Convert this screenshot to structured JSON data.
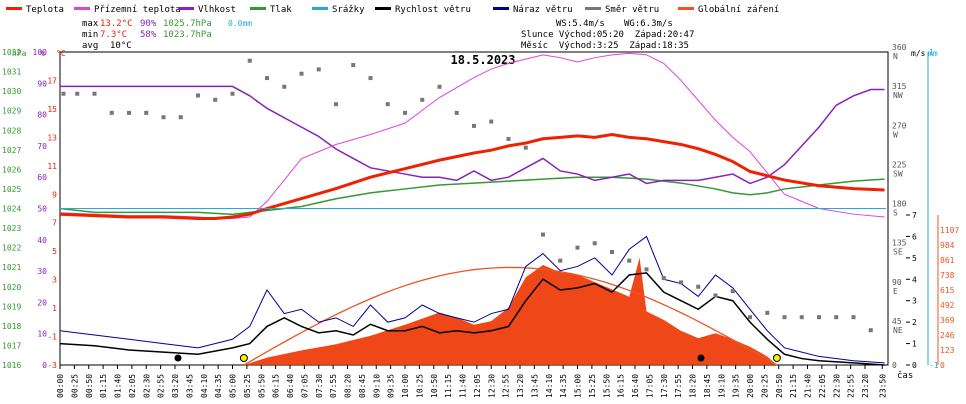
{
  "legend": [
    {
      "label": "Teplota",
      "color": "#ee2200"
    },
    {
      "label": "Přízemní teplota",
      "color": "#dd44dd"
    },
    {
      "label": "Vlhkost",
      "color": "#8822bb"
    },
    {
      "label": "Tlak",
      "color": "#339933"
    },
    {
      "label": "Srážky",
      "color": "#22aadd"
    },
    {
      "label": "Rychlost větru",
      "color": "#000000"
    },
    {
      "label": "Náraz větru",
      "color": "#000099"
    },
    {
      "label": "Směr větru",
      "color": "#777777"
    },
    {
      "label": "Globální záření",
      "color": "#ee5522"
    }
  ],
  "stats": {
    "max_label": "max",
    "max_temp": "13.2°C",
    "max_hum": "90%",
    "max_press": "1025.7hPa",
    "max_rain": "0.0mm",
    "min_label": "min",
    "min_temp": "7.3°C",
    "min_hum": "58%",
    "min_press": "1023.7hPa",
    "avg_label": "avg",
    "avg_temp": "10°C"
  },
  "info": {
    "ws": "WS:5.4m/s",
    "wg": "WG:6.3m/s",
    "sun": "Slunce Východ:05:20  Západ:20:47",
    "moon": "Měsíc  Východ:3:25  Západ:18:35"
  },
  "chart_data": {
    "type": "line",
    "title": "18.5.2023",
    "x_unit": "čas",
    "x_ticks": [
      "00:00",
      "00:25",
      "00:50",
      "01:15",
      "01:40",
      "02:05",
      "02:30",
      "02:55",
      "03:20",
      "03:45",
      "04:10",
      "04:35",
      "05:00",
      "05:25",
      "05:50",
      "06:15",
      "06:40",
      "07:05",
      "07:30",
      "07:55",
      "08:20",
      "08:45",
      "09:10",
      "09:35",
      "10:00",
      "10:25",
      "10:50",
      "11:15",
      "11:40",
      "12:05",
      "12:30",
      "12:55",
      "13:20",
      "13:45",
      "14:10",
      "14:35",
      "15:00",
      "15:25",
      "15:50",
      "16:15",
      "16:40",
      "17:05",
      "17:30",
      "17:55",
      "18:20",
      "18:45",
      "19:10",
      "19:35",
      "20:00",
      "20:25",
      "20:50",
      "21:15",
      "21:40",
      "22:05",
      "22:30",
      "22:55",
      "23:20",
      "23:50"
    ],
    "axes": {
      "pressure": {
        "unit": "hPa",
        "range": [
          1016,
          1032
        ],
        "ticks": [
          "1016",
          "1017",
          "1018",
          "1019",
          "1020",
          "1021",
          "1022",
          "1023",
          "1024",
          "1025",
          "1026",
          "1027",
          "1028",
          "1029",
          "1030",
          "1031",
          "1032"
        ]
      },
      "humidity": {
        "unit": "%",
        "range": [
          0,
          100
        ],
        "ticks": [
          "0",
          "10",
          "20",
          "30",
          "40",
          "50",
          "60",
          "70",
          "80",
          "90",
          "100"
        ]
      },
      "temperature": {
        "unit": "°C",
        "range": [
          -3,
          19
        ],
        "ticks": [
          "-3",
          "-1",
          "1",
          "3",
          "5",
          "7",
          "9",
          "11",
          "13",
          "15",
          "17"
        ]
      },
      "direction": {
        "unit": "°",
        "range": [
          0,
          360
        ],
        "ticks": [
          "0",
          "45 NE",
          "90 E",
          "135 SE",
          "180 S",
          "225 SW",
          "270 W",
          "315 NW",
          "360 N"
        ]
      },
      "wind": {
        "unit": "m/s",
        "range": [
          0,
          7
        ],
        "ticks": [
          "0",
          "1",
          "2",
          "3",
          "4",
          "5",
          "6",
          "7"
        ]
      },
      "rain": {
        "unit": "mm",
        "range": [
          -1,
          1
        ],
        "ticks": [
          "-1",
          "1"
        ]
      },
      "radiation": {
        "range": [
          0,
          1230
        ],
        "ticks": [
          "0",
          "123",
          "246",
          "369",
          "492",
          "615",
          "738",
          "861",
          "984",
          "1107"
        ]
      }
    },
    "series": [
      {
        "name": "Teplota",
        "axis": "temperature",
        "x": [
          0,
          1,
          2,
          3,
          4,
          4.5,
          5,
          5.5,
          6,
          7,
          8,
          9,
          10,
          11,
          12,
          12.5,
          13,
          13.5,
          14,
          14.5,
          15,
          15.5,
          16,
          16.5,
          17,
          17.5,
          18,
          18.5,
          19,
          19.5,
          20,
          21,
          22,
          23,
          23.9
        ],
        "values": [
          7.6,
          7.5,
          7.4,
          7.4,
          7.3,
          7.3,
          7.4,
          7.6,
          8.0,
          8.7,
          9.4,
          10.2,
          10.8,
          11.4,
          11.9,
          12.1,
          12.4,
          12.6,
          12.9,
          13.0,
          13.1,
          13.0,
          13.2,
          13.0,
          12.9,
          12.7,
          12.5,
          12.2,
          11.8,
          11.3,
          10.6,
          10.0,
          9.6,
          9.4,
          9.3
        ]
      },
      {
        "name": "Přízemní teplota",
        "axis": "temperature",
        "x": [
          0,
          1,
          2,
          3,
          4,
          4.5,
          5,
          5.5,
          6,
          7,
          8,
          9,
          10,
          11,
          11.5,
          12,
          12.5,
          13,
          13.5,
          14,
          14.5,
          15,
          15.5,
          16,
          16.5,
          17,
          17.5,
          18,
          18.5,
          19,
          19.5,
          20,
          21,
          22,
          23,
          23.9
        ],
        "values": [
          7.7,
          7.6,
          7.5,
          7.5,
          7.4,
          7.3,
          7.3,
          7.4,
          8.5,
          11.5,
          12.5,
          13.2,
          14.0,
          15.8,
          16.5,
          17.2,
          17.8,
          18.2,
          18.5,
          18.8,
          18.6,
          18.3,
          18.6,
          18.8,
          18.9,
          18.8,
          18.2,
          17.0,
          15.6,
          14.2,
          13.0,
          12.0,
          9.0,
          8.0,
          7.6,
          7.4
        ]
      },
      {
        "name": "Vlhkost",
        "axis": "humidity",
        "x": [
          0,
          1,
          2,
          3,
          4,
          4.5,
          5,
          5.5,
          6,
          6.5,
          7,
          7.5,
          8,
          8.5,
          9,
          9.5,
          10,
          10.5,
          11,
          11.5,
          12,
          12.5,
          13,
          13.5,
          14,
          14.5,
          15,
          15.5,
          16,
          16.5,
          17,
          17.5,
          18,
          18.5,
          19,
          19.5,
          20,
          20.5,
          21,
          21.5,
          22,
          22.5,
          23,
          23.5,
          23.9
        ],
        "values": [
          89,
          89,
          89,
          89,
          89,
          89,
          89,
          86,
          82,
          79,
          76,
          73,
          69,
          66,
          63,
          62,
          61,
          60,
          60,
          59,
          62,
          59,
          60,
          63,
          66,
          62,
          61,
          59,
          60,
          61,
          58,
          59,
          59,
          59,
          60,
          61,
          58,
          60,
          64,
          70,
          76,
          83,
          86,
          88,
          88
        ]
      },
      {
        "name": "Tlak",
        "axis": "pressure",
        "x": [
          0,
          1,
          2,
          3,
          4,
          5,
          5.5,
          6,
          7,
          8,
          9,
          10,
          11,
          12,
          13,
          14,
          15,
          16,
          17,
          18,
          19,
          19.5,
          20,
          20.5,
          21,
          22,
          23,
          23.9
        ],
        "values": [
          1024.0,
          1023.8,
          1023.8,
          1023.8,
          1023.8,
          1023.7,
          1023.8,
          1023.9,
          1024.1,
          1024.5,
          1024.8,
          1025.0,
          1025.2,
          1025.3,
          1025.4,
          1025.5,
          1025.6,
          1025.6,
          1025.5,
          1025.3,
          1025.0,
          1024.8,
          1024.7,
          1024.8,
          1025.0,
          1025.2,
          1025.4,
          1025.5
        ]
      },
      {
        "name": "Rychlost větru",
        "axis": "wind",
        "x": [
          0,
          1,
          2,
          3,
          4,
          5,
          5.5,
          6,
          6.5,
          7,
          7.5,
          8,
          8.5,
          9,
          9.5,
          10,
          10.5,
          11,
          11.5,
          12,
          12.5,
          13,
          13.5,
          14,
          14.5,
          15,
          15.5,
          16,
          16.5,
          17,
          17.5,
          18,
          18.5,
          19,
          19.5,
          20,
          20.5,
          21,
          21.5,
          22,
          23,
          23.9
        ],
        "values": [
          1.0,
          0.9,
          0.7,
          0.6,
          0.5,
          0.8,
          1.0,
          1.8,
          2.2,
          1.8,
          1.5,
          1.6,
          1.4,
          1.9,
          1.6,
          1.6,
          1.8,
          1.5,
          1.6,
          1.5,
          1.6,
          1.8,
          3.0,
          4.0,
          3.5,
          3.6,
          3.8,
          3.4,
          4.2,
          4.3,
          3.4,
          3.0,
          2.6,
          3.2,
          3.0,
          2.0,
          1.2,
          0.5,
          0.3,
          0.2,
          0.1,
          0.0
        ]
      },
      {
        "name": "Náraz větru",
        "axis": "wind",
        "x": [
          0,
          1,
          2,
          3,
          4,
          5,
          5.5,
          6,
          6.5,
          7,
          7.5,
          8,
          8.5,
          9,
          9.5,
          10,
          10.5,
          11,
          11.5,
          12,
          12.5,
          13,
          13.5,
          14,
          14.5,
          15,
          15.5,
          16,
          16.5,
          17,
          17.5,
          18,
          18.5,
          19,
          19.5,
          20,
          20.5,
          21,
          21.5,
          22,
          23,
          23.9
        ],
        "values": [
          1.6,
          1.4,
          1.2,
          1.0,
          0.8,
          1.2,
          1.8,
          3.5,
          2.4,
          2.6,
          2.0,
          2.2,
          1.8,
          2.8,
          2.0,
          2.2,
          2.8,
          2.4,
          2.2,
          2.0,
          2.4,
          2.6,
          4.6,
          5.2,
          4.4,
          4.6,
          5.0,
          4.2,
          5.4,
          6.0,
          4.0,
          3.8,
          3.2,
          4.2,
          3.6,
          2.6,
          1.6,
          0.8,
          0.6,
          0.4,
          0.2,
          0.1
        ]
      },
      {
        "name": "Směr větru",
        "axis": "direction",
        "x": [
          0.1,
          0.5,
          1,
          1.5,
          2,
          2.5,
          3,
          3.5,
          4,
          4.5,
          5,
          5.5,
          6,
          6.5,
          7,
          7.5,
          8,
          8.5,
          9,
          9.5,
          10,
          10.5,
          11,
          11.5,
          12,
          12.5,
          13,
          13.5,
          14,
          14.5,
          15,
          15.5,
          16,
          16.5,
          17,
          17.5,
          18,
          18.5,
          19,
          19.5,
          20,
          20.5,
          21,
          21.5,
          22,
          22.5,
          23,
          23.5
        ],
        "values": [
          312,
          312,
          312,
          290,
          290,
          290,
          285,
          285,
          310,
          305,
          312,
          350,
          330,
          320,
          335,
          340,
          300,
          345,
          330,
          300,
          290,
          305,
          320,
          290,
          275,
          280,
          260,
          250,
          150,
          120,
          135,
          140,
          130,
          120,
          110,
          100,
          95,
          90,
          80,
          85,
          55,
          60,
          55,
          55,
          55,
          55,
          55,
          40
        ]
      },
      {
        "name": "Globální záření",
        "axis": "radiation",
        "x": [
          5.33,
          6,
          7,
          8,
          9,
          10,
          11,
          11.5,
          12,
          12.5,
          13,
          13.5,
          14,
          14.5,
          15,
          15.5,
          16,
          16.5,
          16.8,
          17,
          17.5,
          18,
          18.5,
          19,
          19.5,
          20,
          20.5,
          20.78
        ],
        "values": [
          0,
          60,
          120,
          170,
          240,
          330,
          430,
          390,
          330,
          360,
          470,
          720,
          820,
          760,
          740,
          680,
          620,
          560,
          880,
          440,
          370,
          280,
          220,
          260,
          210,
          150,
          70,
          0
        ]
      },
      {
        "name": "Srážky",
        "axis": "rain",
        "x": [
          0,
          23.9
        ],
        "values": [
          0,
          0
        ]
      }
    ]
  }
}
